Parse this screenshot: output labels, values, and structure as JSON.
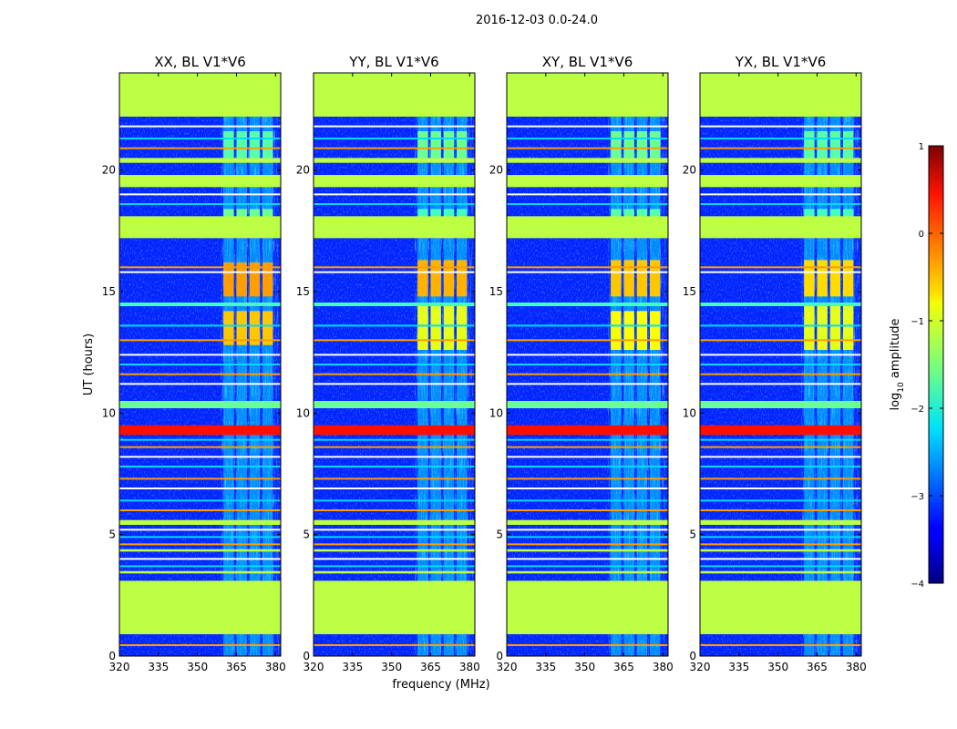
{
  "figure_title": "2016-12-03 0.0-24.0",
  "chart_data": {
    "type": "heatmap",
    "title": "2016-12-03 0.0-24.0",
    "xlabel": "frequency (MHz)",
    "ylabel": "UT (hours)",
    "xlim": [
      320,
      382
    ],
    "ylim": [
      0,
      24
    ],
    "xticks": [
      "320",
      "335",
      "350",
      "365",
      "380"
    ],
    "yticks": [
      "0",
      "5",
      "10",
      "15",
      "20"
    ],
    "xtick_values": [
      320,
      335,
      350,
      365,
      380
    ],
    "ytick_values": [
      0,
      5,
      10,
      15,
      20
    ],
    "colorbar": {
      "label": "log10 amplitude",
      "label_parts": [
        "log",
        "10",
        " amplitude"
      ],
      "range": [
        -4,
        1
      ],
      "ticks": [
        "−4",
        "−3",
        "−2",
        "−1",
        "0",
        "1"
      ],
      "tick_values": [
        -4,
        -3,
        -2,
        -1,
        0,
        1
      ],
      "colormap": "jet"
    },
    "background_log_amplitude": -3.2,
    "flagged_log_amplitude": -1.2,
    "flagged_time_ranges": [
      [
        0.9,
        3.1
      ],
      [
        22.2,
        24.0
      ],
      [
        17.2,
        18.1
      ],
      [
        19.3,
        19.8
      ],
      [
        20.3,
        20.5
      ],
      [
        4.3,
        4.4
      ],
      [
        5.4,
        5.6
      ],
      [
        3.4,
        3.5
      ]
    ],
    "rfi_band_mhz": [
      359,
      381
    ],
    "rfi_channels_mhz": [
      [
        360,
        364
      ],
      [
        365,
        369
      ],
      [
        370,
        374
      ],
      [
        375,
        379
      ]
    ],
    "strong_lines": [
      {
        "ut_start": 9.1,
        "ut_end": 9.5,
        "log_amplitude": 0.3
      },
      {
        "ut_start": 10.2,
        "ut_end": 10.5,
        "log_amplitude": -1.6
      },
      {
        "ut_start": 14.4,
        "ut_end": 14.55,
        "log_amplitude": -1.8
      }
    ],
    "thin_lines_ut": [
      0.45,
      3.7,
      4.0,
      4.6,
      4.9,
      5.2,
      6.0,
      6.4,
      6.9,
      7.3,
      7.8,
      8.2,
      8.6,
      8.9,
      11.2,
      11.6,
      12.0,
      12.4,
      13.0,
      13.6,
      15.8,
      16.0,
      18.6,
      19.0,
      20.9,
      21.3,
      21.8
    ],
    "panels": [
      {
        "title": "XX, BL V1*V6",
        "rfi_blocks": [
          {
            "ut_start": 12.8,
            "ut_end": 14.2,
            "log_amplitude": -0.6
          },
          {
            "ut_start": 14.8,
            "ut_end": 16.2,
            "log_amplitude": -0.4
          },
          {
            "ut_start": 17.6,
            "ut_end": 18.4,
            "log_amplitude": -1.6
          },
          {
            "ut_start": 20.5,
            "ut_end": 21.6,
            "log_amplitude": -1.7
          }
        ]
      },
      {
        "title": "YY, BL V1*V6",
        "rfi_blocks": [
          {
            "ut_start": 12.6,
            "ut_end": 14.4,
            "log_amplitude": -1.0
          },
          {
            "ut_start": 14.8,
            "ut_end": 16.3,
            "log_amplitude": -0.5
          },
          {
            "ut_start": 17.6,
            "ut_end": 18.4,
            "log_amplitude": -1.8
          },
          {
            "ut_start": 20.5,
            "ut_end": 21.6,
            "log_amplitude": -1.6
          }
        ]
      },
      {
        "title": "XY, BL V1*V6",
        "rfi_blocks": [
          {
            "ut_start": 12.6,
            "ut_end": 14.2,
            "log_amplitude": -0.9
          },
          {
            "ut_start": 14.8,
            "ut_end": 16.3,
            "log_amplitude": -0.6
          },
          {
            "ut_start": 17.6,
            "ut_end": 18.4,
            "log_amplitude": -1.7
          },
          {
            "ut_start": 20.5,
            "ut_end": 21.6,
            "log_amplitude": -1.6
          }
        ]
      },
      {
        "title": "YX, BL V1*V6",
        "rfi_blocks": [
          {
            "ut_start": 12.6,
            "ut_end": 14.4,
            "log_amplitude": -1.0
          },
          {
            "ut_start": 14.8,
            "ut_end": 16.3,
            "log_amplitude": -0.7
          },
          {
            "ut_start": 17.6,
            "ut_end": 18.4,
            "log_amplitude": -1.8
          },
          {
            "ut_start": 20.5,
            "ut_end": 21.6,
            "log_amplitude": -1.7
          }
        ]
      }
    ]
  }
}
